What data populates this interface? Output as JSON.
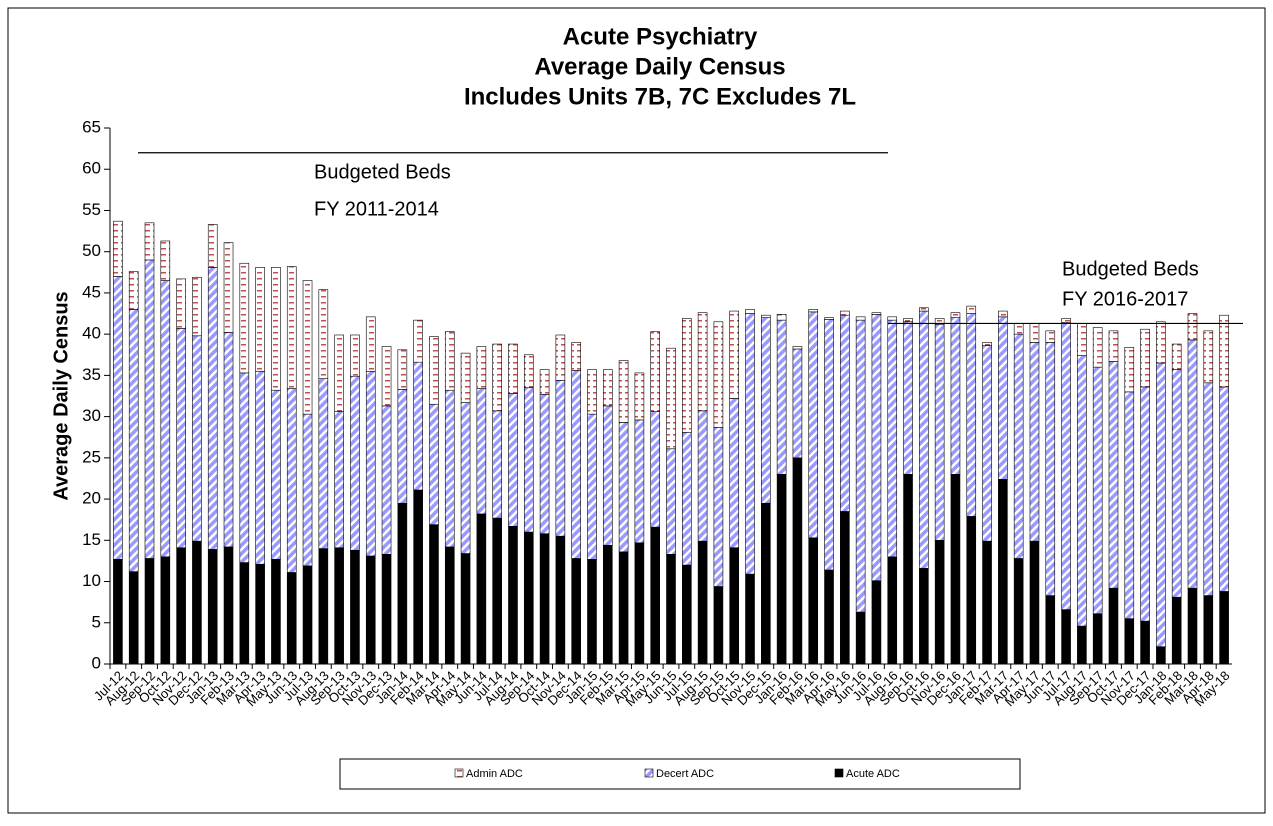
{
  "chart_data": {
    "type": "stacked_bar",
    "title": [
      "Acute Psychiatry",
      "Average Daily Census",
      "Includes Units 7B, 7C  Excludes 7L"
    ],
    "y_label": "Average Daily Census",
    "categories": [
      "Jul-12",
      "Aug-12",
      "Sep-12",
      "Oct-12",
      "Nov-12",
      "Dec-12",
      "Jan-13",
      "Feb-13",
      "Mar-13",
      "Apr-13",
      "May-13",
      "Jun-13",
      "Jul-13",
      "Aug-13",
      "Sep-13",
      "Oct-13",
      "Nov-13",
      "Dec-13",
      "Jan-14",
      "Feb-14",
      "Mar-14",
      "Apr-14",
      "May-14",
      "Jun-14",
      "Jul-14",
      "Aug-14",
      "Sep-14",
      "Oct-14",
      "Nov-14",
      "Dec-14",
      "Jan-15",
      "Feb-15",
      "Mar-15",
      "Apr-15",
      "May-15",
      "Jun-15",
      "Jul-15",
      "Aug-15",
      "Sep-15",
      "Oct-15",
      "Nov-15",
      "Dec-15",
      "Jan-16",
      "Feb-16",
      "Mar-16",
      "Apr-16",
      "May-16",
      "Jun-16",
      "Jul-16",
      "Aug-16",
      "Sep-16",
      "Oct-16",
      "Nov-16",
      "Dec-16",
      "Jan-17",
      "Feb-17",
      "Mar-17",
      "Apr-17",
      "May-17",
      "Jun-17",
      "Jul-17",
      "Aug-17",
      "Sep-17",
      "Oct-17",
      "Nov-17",
      "Dec-17",
      "Jan-18",
      "Feb-18",
      "Mar-18",
      "Apr-18",
      "May-18"
    ],
    "series": [
      {
        "name": "Acute ADC",
        "color": "#000000",
        "values": [
          12.7,
          11.2,
          12.8,
          13,
          14.1,
          14.9,
          13.9,
          14.2,
          12.3,
          12.1,
          12.7,
          11.1,
          11.9,
          14,
          14.1,
          13.8,
          13.1,
          13.3,
          19.5,
          21.1,
          16.9,
          14.2,
          13.4,
          18.2,
          17.7,
          16.7,
          16,
          15.8,
          15.5,
          12.8,
          12.7,
          14.4,
          13.6,
          14.7,
          16.6,
          13.3,
          12,
          14.9,
          9.4,
          14.1,
          10.9,
          19.5,
          23,
          25,
          15.3,
          11.4,
          18.5,
          6.3,
          10.1,
          13,
          23,
          11.6,
          15,
          23,
          17.9,
          14.9,
          22.4,
          12.8,
          14.9,
          8.3,
          6.6,
          4.6,
          6.1,
          9.2,
          5.5,
          5.2,
          2.1,
          8.1,
          9.2,
          8.3,
          8.8
        ]
      },
      {
        "name": "Decert ADC",
        "color": "#9999ff",
        "values": [
          34.3,
          31.8,
          36.2,
          33.5,
          26.6,
          24.9,
          34.2,
          26,
          23,
          23.4,
          20.5,
          22.3,
          18.4,
          20.6,
          16.5,
          21.1,
          22.4,
          18,
          13.8,
          15.5,
          14.6,
          19,
          18.3,
          15.2,
          13,
          16.1,
          17.5,
          16.9,
          18.9,
          22.8,
          17.6,
          16.9,
          15.7,
          14.9,
          14,
          12.8,
          16.1,
          15.8,
          19.3,
          18.1,
          31.6,
          22.5,
          18.7,
          13.2,
          27.4,
          30.4,
          23.8,
          35.4,
          32.3,
          28.7,
          18.5,
          31.2,
          26.2,
          19,
          24.6,
          23.7,
          19.7,
          27.2,
          24.1,
          30.7,
          34.8,
          32.8,
          29.9,
          27.5,
          27.5,
          28.4,
          34.4,
          27.6,
          30.1,
          25.8,
          24.8
        ]
      },
      {
        "name": "Admin ADC",
        "color": "#ffffff",
        "values": [
          6.7,
          4.6,
          4.5,
          4.8,
          6,
          7.1,
          5.2,
          10.9,
          13.3,
          12.6,
          14.9,
          14.8,
          16.2,
          10.8,
          9.3,
          5,
          6.6,
          7.2,
          4.8,
          5.1,
          8.2,
          7.1,
          6,
          5.1,
          8.1,
          6,
          4,
          3,
          5.5,
          3.4,
          5.4,
          4.4,
          7.5,
          5.7,
          9.7,
          12.2,
          13.8,
          11.9,
          12.8,
          10.6,
          0.5,
          0.3,
          0.7,
          0.3,
          0.3,
          0.2,
          0.5,
          0.4,
          0.2,
          0.4,
          0.4,
          0.4,
          0.7,
          0.6,
          0.9,
          0.4,
          0.7,
          1.3,
          2.3,
          1.4,
          0.5,
          3.9,
          4.8,
          3.7,
          5.4,
          7,
          5,
          3.1,
          3.2,
          6.3,
          8.7
        ]
      }
    ],
    "ylim": [
      0,
      65
    ],
    "yticks": [
      0,
      5,
      10,
      15,
      20,
      25,
      30,
      35,
      40,
      45,
      50,
      55,
      60,
      65
    ],
    "reference_lines": [
      {
        "value": 62,
        "label": [
          "Budgeted Beds",
          "FY 2011-2014"
        ]
      },
      {
        "value": 41.3,
        "label": [
          "Budgeted Beds",
          "FY 2016-2017"
        ]
      }
    ],
    "legend": "bottom"
  }
}
